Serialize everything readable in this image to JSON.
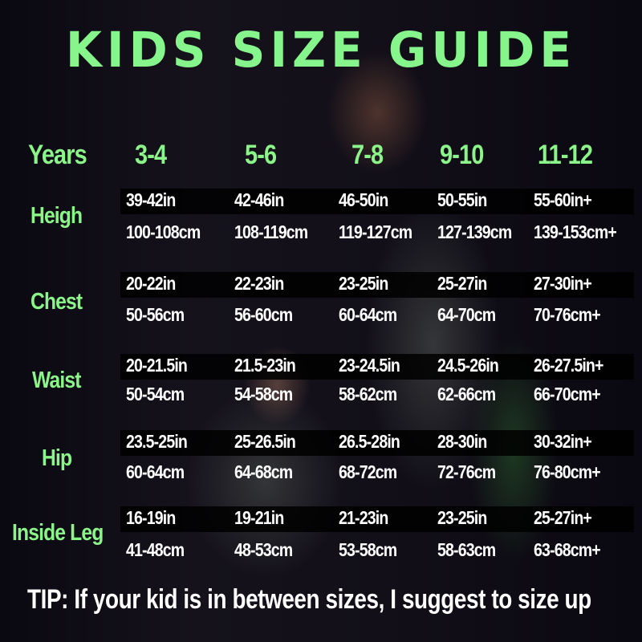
{
  "title": "Kids Size Guide",
  "colors": {
    "accent": "#8bf58a",
    "text": "#ffffff",
    "background": "#0b0910"
  },
  "header": {
    "label": "Years",
    "sizes": [
      "3-4",
      "5-6",
      "7-8",
      "9-10",
      "11-12"
    ]
  },
  "rows": [
    {
      "label": "Heigh",
      "inches": [
        "39-42in",
        "42-46in",
        "46-50in",
        "50-55in",
        "55-60in+"
      ],
      "cm": [
        "100-108cm",
        "108-119cm",
        "119-127cm",
        "127-139cm",
        "139-153cm+"
      ]
    },
    {
      "label": "Chest",
      "inches": [
        "20-22in",
        "22-23in",
        "23-25in",
        "25-27in",
        "27-30in+"
      ],
      "cm": [
        "50-56cm",
        "56-60cm",
        "60-64cm",
        "64-70cm",
        "70-76cm+"
      ]
    },
    {
      "label": "Waist",
      "inches": [
        "20-21.5in",
        "21.5-23in",
        "23-24.5in",
        "24.5-26in",
        "26-27.5in+"
      ],
      "cm": [
        "50-54cm",
        "54-58cm",
        "58-62cm",
        "62-66cm",
        "66-70cm+"
      ]
    },
    {
      "label": "Hip",
      "inches": [
        "23.5-25in",
        "25-26.5in",
        "26.5-28in",
        "28-30in",
        "30-32in+"
      ],
      "cm": [
        "60-64cm",
        "64-68cm",
        "68-72cm",
        "72-76cm",
        "76-80cm+"
      ]
    },
    {
      "label": "Inside Leg",
      "inches": [
        "16-19in",
        "19-21in",
        "21-23in",
        "23-25in",
        "25-27in+"
      ],
      "cm": [
        "41-48cm",
        "48-53cm",
        "53-58cm",
        "58-63cm",
        "63-68cm+"
      ]
    }
  ],
  "tip": "TIP: If your kid is in between sizes, I suggest to size up"
}
